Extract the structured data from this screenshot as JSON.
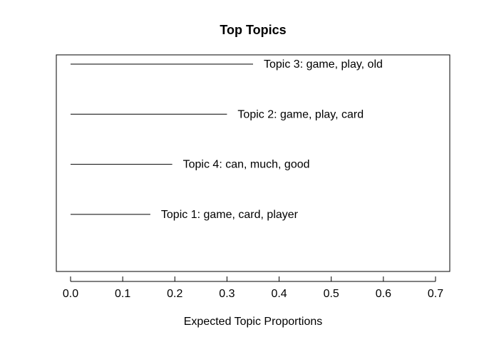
{
  "chart_data": {
    "type": "bar",
    "orientation": "horizontal",
    "title": "Top Topics",
    "xlabel": "Expected Topic Proportions",
    "ylabel": "",
    "xlim": [
      0.0,
      0.7
    ],
    "xticks": [
      0.0,
      0.1,
      0.2,
      0.3,
      0.4,
      0.5,
      0.6,
      0.7
    ],
    "xtick_labels": [
      "0.0",
      "0.1",
      "0.2",
      "0.3",
      "0.4",
      "0.5",
      "0.6",
      "0.7"
    ],
    "grid": false,
    "legend": "none",
    "categories": [
      "Topic 3: game, play, old",
      "Topic 2: game, play, card",
      "Topic 4: can, much, good",
      "Topic 1: game, card, player"
    ],
    "values": [
      0.35,
      0.3,
      0.195,
      0.153
    ]
  }
}
